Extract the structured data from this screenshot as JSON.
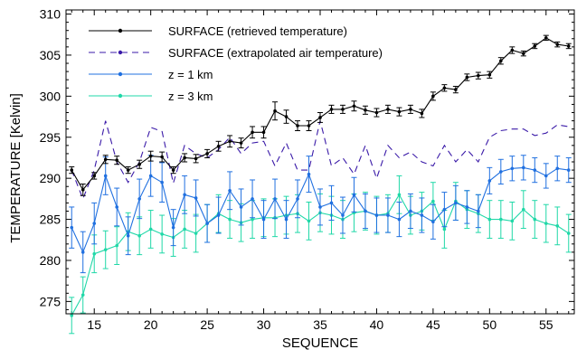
{
  "chart_data": {
    "type": "line",
    "title": "",
    "xlabel": "SEQUENCE",
    "ylabel": "TEMPERATURE [Kelvin]",
    "xlim": [
      12.5,
      57.5
    ],
    "ylim": [
      273.5,
      310.5
    ],
    "x_ticks": [
      15,
      20,
      25,
      30,
      35,
      40,
      45,
      50,
      55
    ],
    "y_ticks": [
      275,
      280,
      285,
      290,
      295,
      300,
      305,
      310
    ],
    "grid": false,
    "legend_position": "top-left",
    "x": [
      13,
      14,
      15,
      16,
      17,
      18,
      19,
      20,
      21,
      22,
      23,
      24,
      25,
      26,
      27,
      28,
      29,
      30,
      31,
      32,
      33,
      34,
      35,
      36,
      37,
      38,
      39,
      40,
      41,
      42,
      43,
      44,
      45,
      46,
      47,
      48,
      49,
      50,
      51,
      52,
      53,
      54,
      55,
      56,
      57
    ],
    "series": [
      {
        "name": "SURFACE (retrieved temperature)",
        "color": "#000000",
        "style": "solid",
        "marker": "dot",
        "values": [
          291.0,
          288.6,
          290.3,
          292.3,
          292.2,
          291.0,
          291.7,
          292.7,
          292.6,
          291.0,
          292.5,
          292.4,
          293.0,
          293.9,
          294.5,
          294.3,
          295.6,
          295.6,
          298.2,
          297.5,
          296.4,
          296.4,
          297.4,
          298.4,
          298.4,
          298.8,
          298.3,
          298.0,
          298.4,
          298.1,
          298.4,
          297.9,
          300.0,
          301.0,
          300.8,
          302.3,
          302.5,
          302.6,
          304.3,
          305.6,
          305.2,
          306.1,
          307.1,
          306.3,
          306.1
        ],
        "errors": [
          0.4,
          0.7,
          0.4,
          0.5,
          0.5,
          0.4,
          0.5,
          0.6,
          0.6,
          0.4,
          0.5,
          0.5,
          0.5,
          0.6,
          0.7,
          0.6,
          0.7,
          0.7,
          1.1,
          0.8,
          0.6,
          0.6,
          0.6,
          0.5,
          0.5,
          0.6,
          0.5,
          0.5,
          0.5,
          0.5,
          0.5,
          0.5,
          0.5,
          0.4,
          0.4,
          0.4,
          0.4,
          0.4,
          0.4,
          0.4,
          0.3,
          0.3,
          0.3,
          0.3,
          0.3
        ]
      },
      {
        "name": "SURFACE (extrapolated air temperature)",
        "color": "#3a1aa8",
        "style": "dashed",
        "marker": "none",
        "values": [
          291.0,
          287.5,
          291.0,
          297.0,
          292.0,
          289.5,
          292.0,
          296.2,
          295.7,
          289.4,
          294.0,
          293.0,
          292.5,
          293.5,
          295.0,
          293.0,
          294.3,
          294.5,
          291.5,
          294.3,
          291.0,
          291.0,
          297.0,
          291.5,
          292.5,
          290.5,
          294.0,
          290.0,
          294.0,
          292.5,
          293.2,
          292.0,
          291.5,
          294.0,
          292.0,
          293.5,
          292.0,
          295.0,
          295.8,
          296.0,
          296.0,
          295.2,
          295.5,
          296.5,
          296.3
        ]
      },
      {
        "name": "z = 1 km",
        "color": "#2070e0",
        "style": "solid",
        "marker": "dot",
        "values": [
          284.0,
          281.0,
          284.5,
          290.3,
          286.5,
          283.0,
          287.5,
          290.3,
          289.5,
          284.0,
          288.0,
          287.6,
          284.5,
          285.5,
          288.5,
          286.5,
          287.5,
          285.0,
          287.5,
          285.0,
          287.5,
          290.5,
          286.5,
          287.0,
          285.5,
          288.0,
          286.0,
          285.5,
          285.5,
          285.0,
          286.0,
          285.5,
          284.7,
          286.2,
          287.0,
          286.5,
          286.0,
          289.7,
          290.8,
          291.2,
          291.3,
          291.0,
          290.3,
          291.2,
          291.0
        ],
        "errors": [
          2.5,
          2.5,
          2.5,
          2.3,
          2.3,
          2.3,
          2.4,
          2.5,
          2.4,
          2.2,
          2.3,
          2.2,
          2.3,
          2.2,
          2.3,
          2.2,
          2.3,
          2.3,
          2.4,
          2.3,
          2.3,
          2.2,
          2.2,
          2.1,
          2.2,
          2.1,
          2.1,
          2.1,
          2.1,
          2.1,
          2.1,
          2.1,
          2.1,
          2.1,
          2.1,
          2.0,
          2.0,
          1.6,
          1.5,
          1.5,
          1.5,
          1.5,
          1.5,
          1.5,
          1.5
        ]
      },
      {
        "name": "z = 3 km",
        "color": "#20d8a8",
        "style": "solid",
        "marker": "dot",
        "values": [
          273.3,
          275.8,
          280.8,
          281.3,
          281.8,
          283.5,
          283.0,
          283.8,
          283.2,
          282.8,
          283.8,
          283.3,
          284.5,
          285.7,
          285.0,
          284.6,
          285.0,
          285.2,
          285.2,
          285.5,
          285.7,
          284.8,
          285.8,
          285.5,
          285.0,
          285.8,
          286.0,
          285.5,
          285.7,
          288.0,
          285.5,
          286.0,
          287.2,
          283.8,
          287.2,
          286.2,
          285.7,
          285.0,
          285.0,
          284.8,
          286.2,
          285.0,
          284.5,
          284.2,
          283.3
        ],
        "errors": [
          2.2,
          2.2,
          2.3,
          2.3,
          2.3,
          2.3,
          2.3,
          2.3,
          2.3,
          2.3,
          2.3,
          2.3,
          2.3,
          2.3,
          2.3,
          2.3,
          2.3,
          2.3,
          2.3,
          2.3,
          2.3,
          2.3,
          2.3,
          2.3,
          2.3,
          2.3,
          2.3,
          2.3,
          2.3,
          2.3,
          2.3,
          2.3,
          2.3,
          2.3,
          2.3,
          2.3,
          2.3,
          2.3,
          2.3,
          2.3,
          2.3,
          2.3,
          2.3,
          2.3,
          2.3
        ]
      }
    ]
  }
}
